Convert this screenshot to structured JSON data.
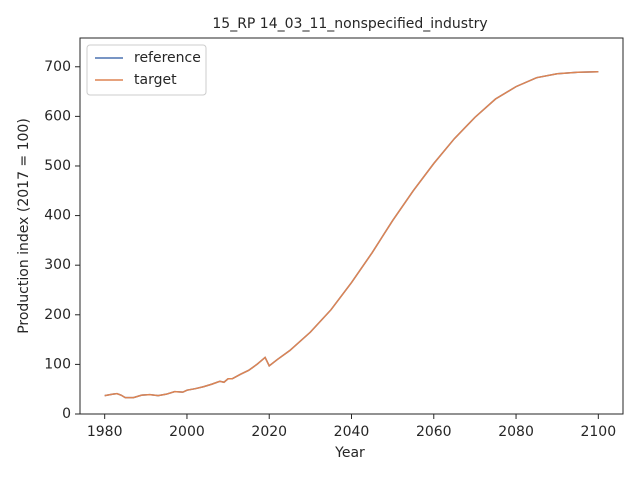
{
  "chart_data": {
    "type": "line",
    "title": "15_RP 14_03_11_nonspecified_industry",
    "x_label": "Year",
    "y_label": "Production index (2017 = 100)",
    "x": [
      1980,
      1982,
      1983,
      1984,
      1985,
      1987,
      1989,
      1991,
      1993,
      1995,
      1997,
      1999,
      2000,
      2002,
      2004,
      2006,
      2008,
      2009,
      2010,
      2011,
      2013,
      2015,
      2017,
      2019,
      2020,
      2022,
      2025,
      2030,
      2035,
      2040,
      2045,
      2050,
      2055,
      2060,
      2065,
      2070,
      2075,
      2080,
      2085,
      2090,
      2095,
      2100
    ],
    "series": [
      {
        "name": "reference",
        "color": "#4c72b0",
        "values": [
          37,
          40,
          41,
          38,
          33,
          33,
          38,
          39,
          37,
          40,
          45,
          44,
          48,
          51,
          55,
          60,
          66,
          64,
          71,
          71,
          80,
          88,
          100,
          114,
          97,
          110,
          128,
          165,
          210,
          265,
          325,
          390,
          450,
          505,
          555,
          598,
          635,
          660,
          678,
          686,
          689,
          690
        ]
      },
      {
        "name": "target",
        "color": "#dd8452",
        "values": [
          37,
          40,
          41,
          38,
          33,
          33,
          38,
          39,
          37,
          40,
          45,
          44,
          48,
          51,
          55,
          60,
          66,
          64,
          71,
          71,
          80,
          88,
          100,
          114,
          97,
          110,
          128,
          165,
          210,
          265,
          325,
          390,
          450,
          505,
          555,
          598,
          635,
          660,
          678,
          686,
          689,
          690
        ]
      }
    ],
    "xlim": [
      1974,
      2106
    ],
    "ylim": [
      0,
      758
    ],
    "xticks": [
      1980,
      2000,
      2020,
      2040,
      2060,
      2080,
      2100
    ],
    "yticks": [
      0,
      100,
      200,
      300,
      400,
      500,
      600,
      700
    ],
    "grid": false,
    "legend": "upper left"
  }
}
